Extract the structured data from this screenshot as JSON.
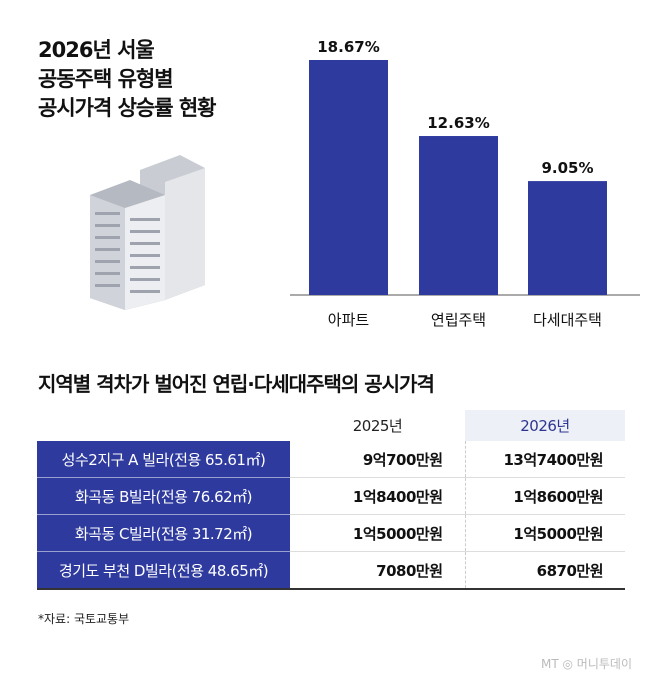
{
  "title_lines": [
    "2026년 서울",
    "공동주택 유형별",
    "공시가격 상승률 현황"
  ],
  "chart_data": {
    "type": "bar",
    "categories": [
      "아파트",
      "연립주택",
      "다세대주택"
    ],
    "values": [
      18.67,
      12.63,
      9.05
    ],
    "data_labels": [
      "18.67%",
      "12.63%",
      "9.05%"
    ],
    "unit": "%",
    "bar_color": "#2f3a9f",
    "grid": false
  },
  "table": {
    "title": "지역별 격차가 벌어진 연립·다세대주택의 공시가격",
    "headers": [
      "2025년",
      "2026년"
    ],
    "rows": [
      {
        "label": "성수2지구 A 빌라(전용 65.61㎡)",
        "v2025": "9억700만원",
        "v2026": "13억7400만원"
      },
      {
        "label": "화곡동 B빌라(전용 76.62㎡)",
        "v2025": "1억8400만원",
        "v2026": "1억8600만원"
      },
      {
        "label": "화곡동 C빌라(전용 31.72㎡)",
        "v2025": "1억5000만원",
        "v2026": "1억5000만원"
      },
      {
        "label": "경기도 부천 D빌라(전용 48.65㎡)",
        "v2025": "7080만원",
        "v2026": "6870만원"
      }
    ]
  },
  "source": "*자료: 국토교통부",
  "logo": "MT 머니투데이"
}
